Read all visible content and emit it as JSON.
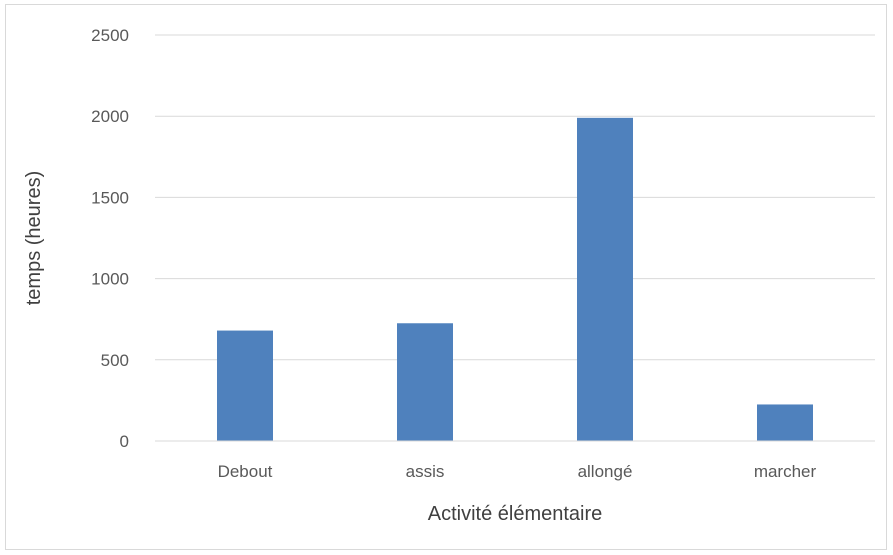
{
  "chart_data": {
    "type": "bar",
    "categories": [
      "Debout",
      "assis",
      "allongé",
      "marcher"
    ],
    "values": [
      680,
      725,
      1990,
      225
    ],
    "title": "",
    "xlabel": "Activité élémentaire",
    "ylabel": "temps (heures)",
    "ylim": [
      0,
      2500
    ],
    "yticks": [
      0,
      500,
      1000,
      1500,
      2000,
      2500
    ],
    "grid": true,
    "legend": "none",
    "bar_color": "#4f81bd",
    "grid_color": "#d9d9d9"
  }
}
